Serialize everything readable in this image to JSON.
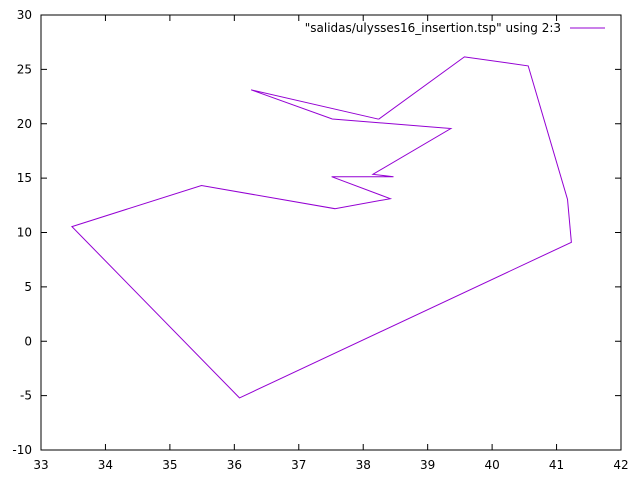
{
  "chart_data": {
    "type": "line",
    "title": "",
    "xlabel": "",
    "ylabel": "",
    "xlim": [
      33,
      42
    ],
    "ylim": [
      -10,
      30
    ],
    "x_ticks": [
      33,
      34,
      35,
      36,
      37,
      38,
      39,
      40,
      41,
      42
    ],
    "y_ticks": [
      -10,
      -5,
      0,
      5,
      10,
      15,
      20,
      25,
      30
    ],
    "grid": false,
    "legend_position": "top-right",
    "series": [
      {
        "name": "\"salidas/ulysses16_insertion.tsp\" using 2:3",
        "color": "#9400d3",
        "points": [
          [
            38.24,
            20.42
          ],
          [
            39.57,
            26.15
          ],
          [
            40.56,
            25.32
          ],
          [
            41.17,
            13.05
          ],
          [
            41.23,
            9.1
          ],
          [
            36.08,
            -5.21
          ],
          [
            33.48,
            10.54
          ],
          [
            35.49,
            14.32
          ],
          [
            37.56,
            12.19
          ],
          [
            38.42,
            13.11
          ],
          [
            37.51,
            15.13
          ],
          [
            38.47,
            15.13
          ],
          [
            38.15,
            15.35
          ],
          [
            39.36,
            19.56
          ],
          [
            37.52,
            20.44
          ],
          [
            36.26,
            23.12
          ],
          [
            38.24,
            20.42
          ]
        ]
      }
    ]
  }
}
